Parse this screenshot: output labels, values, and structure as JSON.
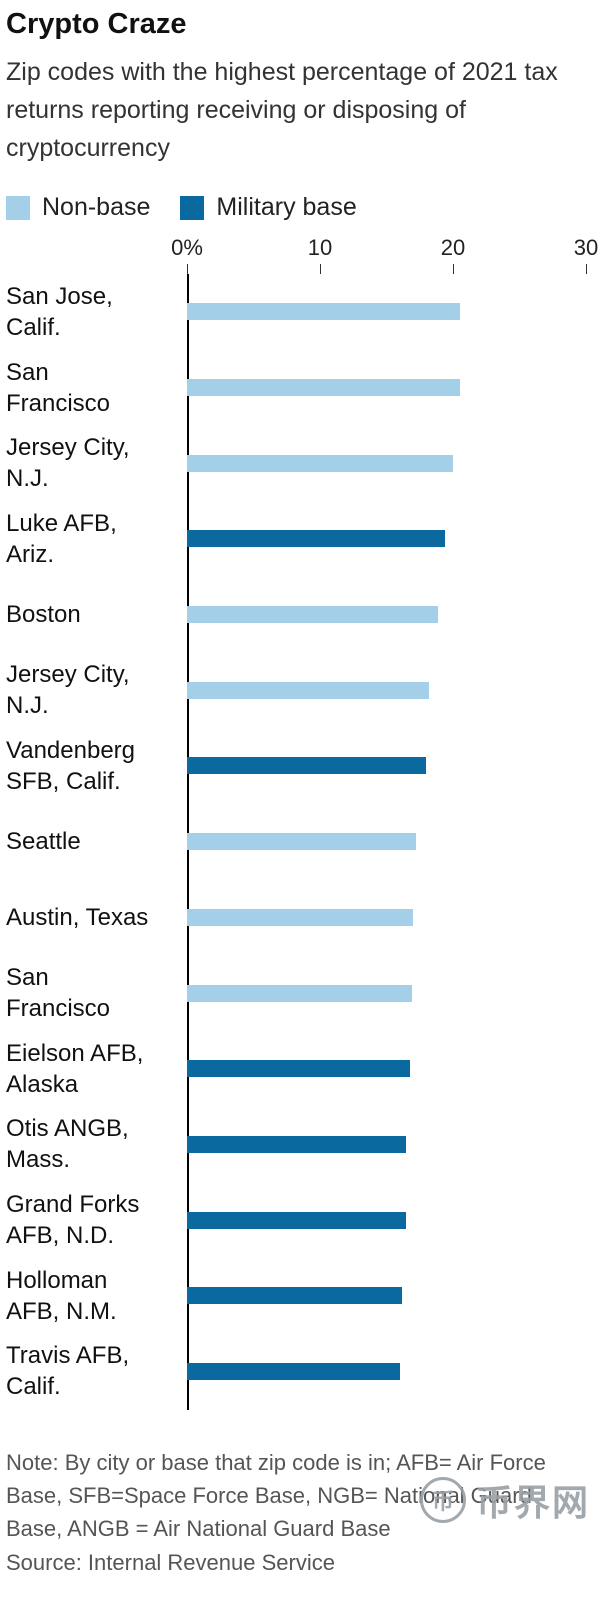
{
  "header": {
    "title": "Crypto Craze",
    "subtitle": "Zip codes with the highest percentage of 2021 tax returns reporting receiving or disposing of cryptocurrency"
  },
  "legend": [
    {
      "label": "Non-base",
      "color": "#a4cfe8",
      "key": "non-base"
    },
    {
      "label": "Military base",
      "color": "#0a6a9f",
      "key": "military"
    }
  ],
  "chart_data": {
    "type": "bar",
    "orientation": "horizontal",
    "title": "Crypto Craze",
    "unit": "%",
    "xlim": [
      0,
      30
    ],
    "x_ticks": [
      "0%",
      "10",
      "20",
      "30"
    ],
    "x_tick_values": [
      0,
      10,
      20,
      30
    ],
    "grid": false,
    "legend_position": "top",
    "categories": [
      "San Jose,\nCalif.",
      "San\nFrancisco",
      "Jersey City,\nN.J.",
      "Luke AFB,\nAriz.",
      "Boston",
      "Jersey City,\nN.J.",
      "Vandenberg\nSFB, Calif.",
      "Seattle",
      "Austin, Texas",
      "San\nFrancisco",
      "Eielson AFB,\nAlaska",
      "Otis ANGB,\nMass.",
      "Grand Forks\nAFB, N.D.",
      "Holloman\nAFB, N.M.",
      "Travis AFB,\nCalif."
    ],
    "values": [
      20.5,
      20.5,
      20,
      19.4,
      18.9,
      18.2,
      18,
      17.2,
      17,
      16.9,
      16.8,
      16.5,
      16.5,
      16.2,
      16
    ],
    "series_class": [
      "non-base",
      "non-base",
      "non-base",
      "military",
      "non-base",
      "non-base",
      "military",
      "non-base",
      "non-base",
      "non-base",
      "military",
      "military",
      "military",
      "military",
      "military"
    ],
    "colors": {
      "non-base": "#a4cfe8",
      "military": "#0a6a9f"
    }
  },
  "footer": {
    "note": "Note: By city or base that zip code is in; AFB= Air Force Base, SFB=Space Force Base, NGB= National Guard Base, ANGB = Air National Guard Base",
    "source": "Source: Internal Revenue Service"
  },
  "watermark": {
    "icon_glyph": "币",
    "text": "币界网"
  }
}
